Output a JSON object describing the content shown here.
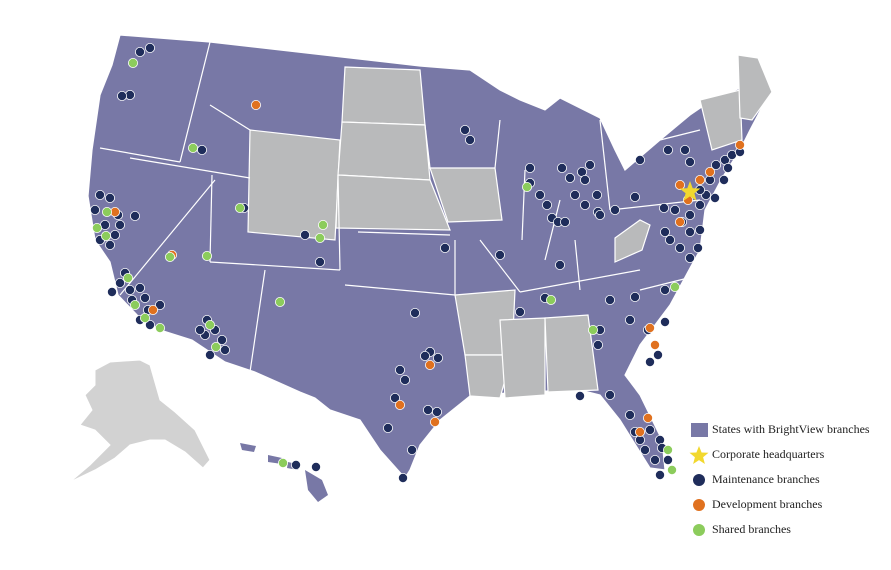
{
  "colors": {
    "branch_state": "#7878a6",
    "no_branch_state": "#b9babb",
    "alaska": "#d2d2d2",
    "border": "#ffffff",
    "maintenance": "#1f2d5b",
    "development": "#e0711f",
    "shared": "#8ccc5c",
    "hq": "#f2d82e"
  },
  "legend": {
    "states": "States with BrightView branches",
    "hq": "Corporate headquarters",
    "maintenance": "Maintenance branches",
    "development": "Development branches",
    "shared": "Shared branches"
  },
  "icons": {
    "state_swatch": "square-swatch",
    "hq": "star-icon",
    "maintenance": "dot-icon",
    "development": "dot-icon",
    "shared": "dot-icon"
  }
}
